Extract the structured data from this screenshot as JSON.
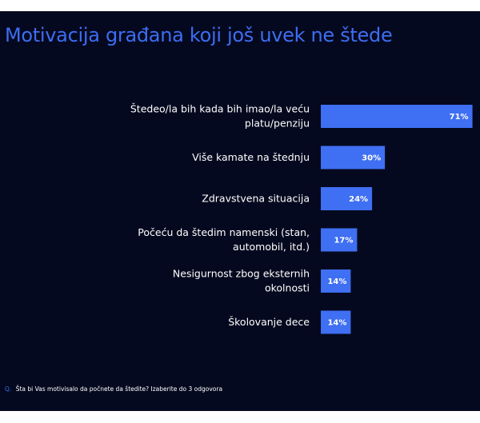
{
  "title": "Motivacija građana koji još uvek ne štede",
  "footnote": {
    "q_marker": "Q.",
    "text": "Šta bi Vas motivisalo da počnete da štedite? Izaberite do 3 odgovora"
  },
  "colors": {
    "background": "#05091f",
    "bar": "#3f6ff2",
    "title": "#3d6df2"
  },
  "chart_data": {
    "type": "bar",
    "orientation": "horizontal",
    "categories": [
      [
        "Štedeo/la bih kada bih imao/la veću",
        "platu/penziju"
      ],
      [
        "Više kamate na štednju"
      ],
      [
        "Zdravstvena situacija"
      ],
      [
        "Počeću da štedim namenski (stan,",
        "automobil, itd.)"
      ],
      [
        "Nesigurnost zbog eksternih",
        "okolnosti"
      ],
      [
        "Školovanje dece"
      ]
    ],
    "values": [
      71,
      30,
      24,
      17,
      14,
      14
    ],
    "value_labels": [
      "71%",
      "30%",
      "24%",
      "17%",
      "14%",
      "14%"
    ],
    "xlim": [
      0,
      100
    ],
    "grid": false,
    "legend": "none"
  }
}
